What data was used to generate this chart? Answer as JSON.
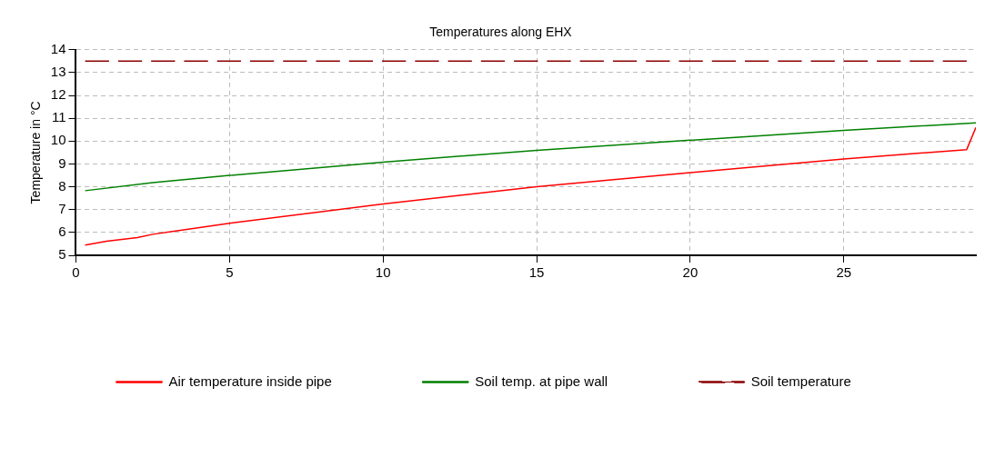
{
  "chart_data": {
    "type": "line",
    "title": "Temperatures along EHX",
    "ylabel": "Temperature in °C",
    "xlim": [
      0,
      29.3
    ],
    "xticks": [
      0,
      5,
      10,
      15,
      20,
      25
    ],
    "ylim": [
      5,
      14
    ],
    "yticks": [
      5,
      6,
      7,
      8,
      9,
      10,
      11,
      12,
      13,
      14
    ],
    "grid": true,
    "legend": "bottom",
    "marker": "none",
    "series": [
      {
        "name": "Air temperature inside pipe",
        "color": "#ff0000",
        "line_style": "solid",
        "x": [
          0.3,
          1,
          2,
          2.5,
          5,
          10,
          15,
          20,
          25,
          29,
          29.3
        ],
        "values": [
          5.45,
          5.62,
          5.78,
          5.92,
          6.4,
          7.25,
          8.0,
          8.62,
          9.22,
          9.63,
          10.6
        ]
      },
      {
        "name": "Soil temp. at pipe wall",
        "color": "#008000",
        "line_style": "solid",
        "x": [
          0.3,
          2.5,
          5,
          10,
          15,
          20,
          25,
          29.3
        ],
        "values": [
          7.83,
          8.18,
          8.5,
          9.08,
          9.6,
          10.04,
          10.47,
          10.8
        ]
      },
      {
        "name": "Soil temperature",
        "color": "#8b0000",
        "line_style": "dashed",
        "x": [
          0.3,
          29
        ],
        "values": [
          13.5,
          13.5
        ]
      }
    ]
  }
}
